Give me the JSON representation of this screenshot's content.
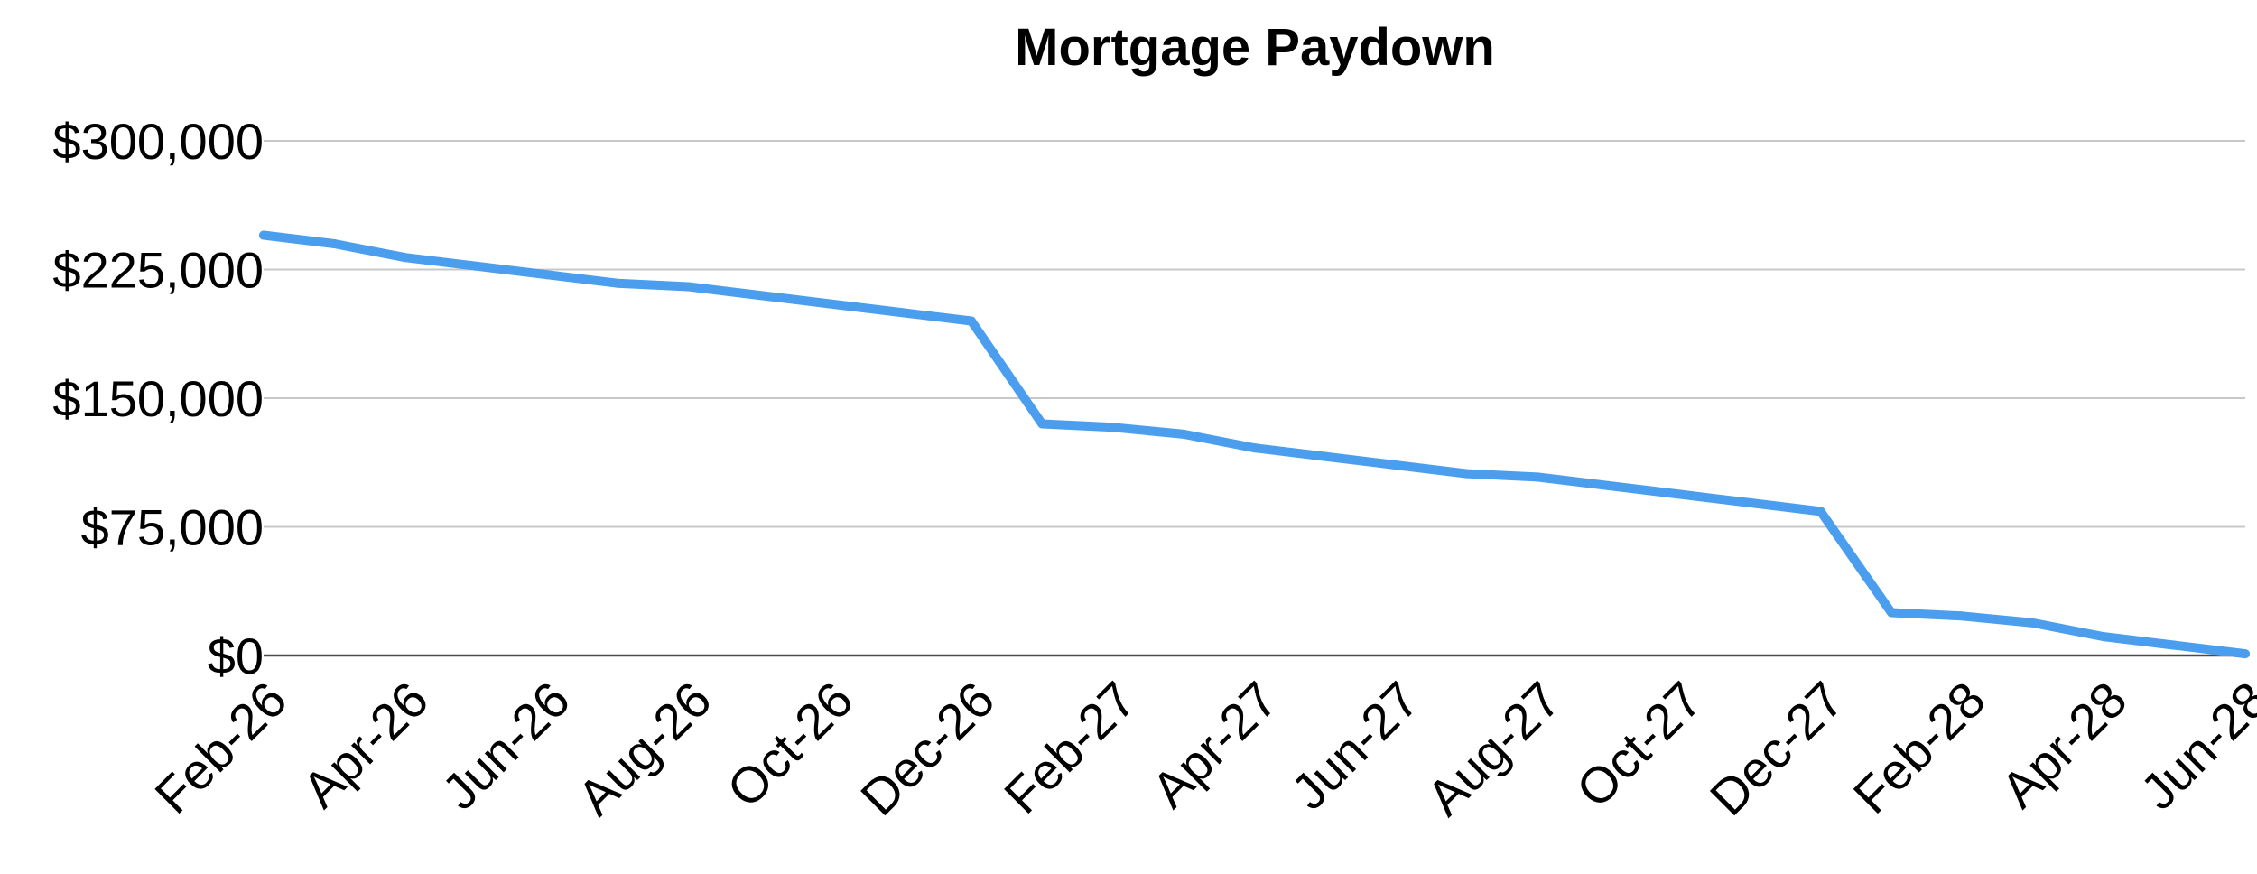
{
  "chart_data": {
    "type": "line",
    "title": "Mortgage Paydown",
    "xlabel": "",
    "ylabel": "",
    "ylim": [
      0,
      300000
    ],
    "yticks": [
      0,
      75000,
      150000,
      225000,
      300000
    ],
    "ytick_labels": [
      "$0",
      "$75,000",
      "$150,000",
      "$225,000",
      "$300,000"
    ],
    "xtick_labels": [
      "Feb-26",
      "Apr-26",
      "Jun-26",
      "Aug-26",
      "Oct-26",
      "Dec-26",
      "Feb-27",
      "Apr-27",
      "Jun-27",
      "Aug-27",
      "Oct-27",
      "Dec-27",
      "Feb-28",
      "Apr-28",
      "Jun-28"
    ],
    "x": [
      "Feb-26",
      "Mar-26",
      "Apr-26",
      "May-26",
      "Jun-26",
      "Jul-26",
      "Aug-26",
      "Sep-26",
      "Oct-26",
      "Nov-26",
      "Dec-26",
      "Jan-27",
      "Feb-27",
      "Mar-27",
      "Apr-27",
      "May-27",
      "Jun-27",
      "Jul-27",
      "Aug-27",
      "Sep-27",
      "Oct-27",
      "Nov-27",
      "Dec-27",
      "Jan-28",
      "Feb-28",
      "Mar-28",
      "Apr-28",
      "May-28",
      "Jun-28"
    ],
    "series": [
      {
        "values": [
          245000,
          240000,
          232000,
          227000,
          222000,
          217000,
          215000,
          210000,
          205000,
          200000,
          195000,
          135000,
          133000,
          129000,
          121000,
          116000,
          111000,
          106000,
          104000,
          99000,
          94000,
          89000,
          84000,
          25000,
          23000,
          19000,
          11000,
          6000,
          1000
        ],
        "color": "#4a9eed"
      }
    ],
    "grid": true,
    "legend": "none"
  }
}
